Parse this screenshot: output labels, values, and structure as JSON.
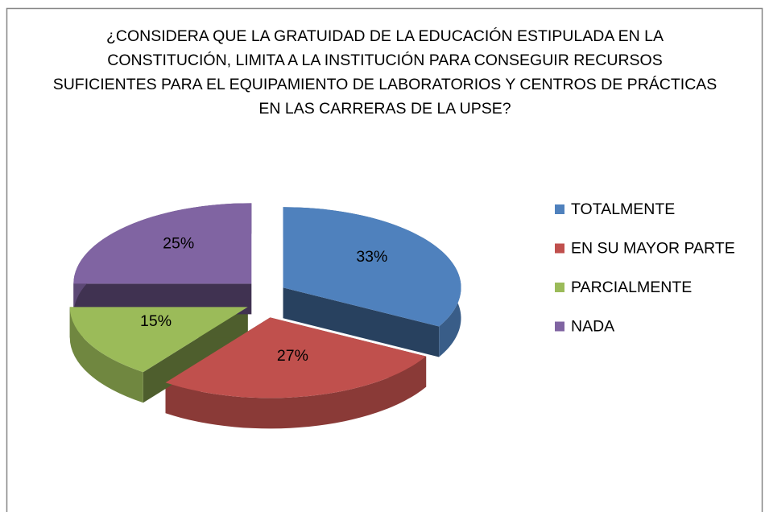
{
  "chart_data": {
    "type": "pie",
    "title": "¿CONSIDERA QUE LA GRATUIDAD DE LA EDUCACIÓN ESTIPULADA EN LA\nCONSTITUCIÓN, LIMITA A LA INSTITUCIÓN PARA CONSEGUIR RECURSOS\nSUFICIENTES PARA EL EQUIPAMIENTO DE LABORATORIOS Y CENTROS DE PRÁCTICAS\nEN LAS CARRERAS DE LA UPSE?",
    "categories": [
      "TOTALMENTE",
      "EN SU MAYOR PARTE",
      "PARCIALMENTE",
      "NADA"
    ],
    "values": [
      33,
      27,
      15,
      25
    ],
    "value_labels": [
      "33%",
      "27%",
      "15%",
      "25%"
    ],
    "colors": [
      "#4f81bd",
      "#c0504d",
      "#9bbb59",
      "#8064a2"
    ],
    "legend": "right"
  }
}
